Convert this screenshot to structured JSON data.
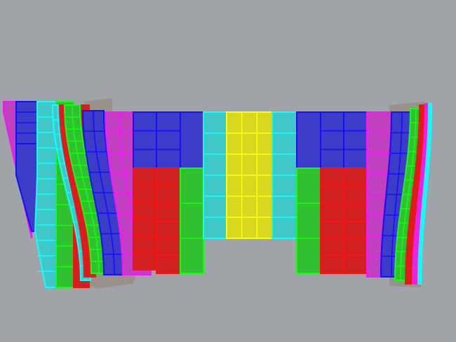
{
  "viewport": {
    "background": "#a0a4a9",
    "colors": {
      "blue": "#3c3cc8",
      "blue_edge": "#1010ff",
      "red": "#d02020",
      "red_edge": "#ff1010",
      "green": "#30c030",
      "green_edge": "#10ff10",
      "cyan": "#40c8c8",
      "cyan_edge": "#10ffff",
      "yellow": "#d8d820",
      "yellow_edge": "#ffff10",
      "magenta": "#c040c0",
      "magenta_edge": "#ff10ff",
      "backing": "#9a928a"
    }
  }
}
